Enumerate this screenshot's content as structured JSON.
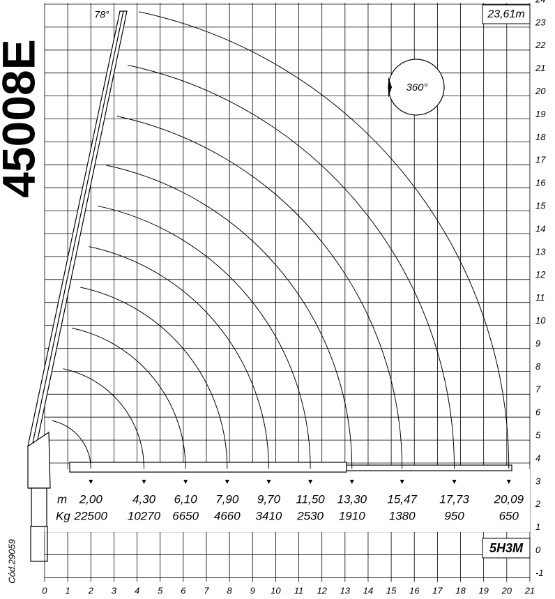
{
  "title": "45008E",
  "code": "Cód.29059",
  "model": "5H3M",
  "angle": "78°",
  "max_reach": "23,61m",
  "rotation": "360°",
  "distance_unit": "m",
  "load_unit": "Kg",
  "distances": [
    {
      "value": 2.0,
      "label": "2,00"
    },
    {
      "value": 4.3,
      "label": "4,30"
    },
    {
      "value": 6.1,
      "label": "6,10"
    },
    {
      "value": 7.9,
      "label": "7,90"
    },
    {
      "value": 9.7,
      "label": "9,70"
    },
    {
      "value": 11.5,
      "label": "11,50"
    },
    {
      "value": 13.3,
      "label": "13,30"
    },
    {
      "value": 15.47,
      "label": "15,47"
    },
    {
      "value": 17.73,
      "label": "17,73"
    },
    {
      "value": 20.09,
      "label": "20,09"
    }
  ],
  "loads": [
    22500,
    10270,
    6650,
    4660,
    3410,
    2530,
    1910,
    1380,
    950,
    650
  ],
  "xticks": [
    0,
    1,
    2,
    3,
    4,
    5,
    6,
    7,
    8,
    9,
    10,
    11,
    12,
    13,
    14,
    15,
    16,
    17,
    18,
    19,
    20,
    21
  ],
  "yticks": [
    -1,
    0,
    1,
    2,
    3,
    4,
    5,
    6,
    7,
    8,
    9,
    10,
    11,
    12,
    13,
    14,
    15,
    16,
    17,
    18,
    19,
    20,
    21,
    22,
    23,
    24
  ]
}
